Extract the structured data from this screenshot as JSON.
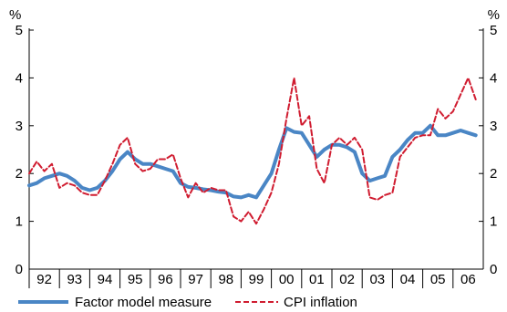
{
  "chart_data": {
    "type": "line",
    "unit_left": "%",
    "unit_right": "%",
    "ylim": [
      0,
      5
    ],
    "yticks": [
      0,
      1,
      2,
      3,
      4,
      5
    ],
    "x_categories": [
      "92",
      "93",
      "94",
      "95",
      "96",
      "97",
      "98",
      "99",
      "00",
      "01",
      "02",
      "03",
      "04",
      "05",
      "06"
    ],
    "x_start": 1992.0,
    "x_end": 2006.75,
    "grid": false,
    "legend_position": "bottom",
    "colors": {
      "factor": "#4a86c5",
      "cpi": "#d01c30",
      "axis": "#000000"
    },
    "series": [
      {
        "name": "Factor model measure",
        "style": "solid",
        "x": [
          1992.0,
          1992.25,
          1992.5,
          1992.75,
          1993.0,
          1993.25,
          1993.5,
          1993.75,
          1994.0,
          1994.25,
          1994.5,
          1994.75,
          1995.0,
          1995.25,
          1995.5,
          1995.75,
          1996.0,
          1996.25,
          1996.5,
          1996.75,
          1997.0,
          1997.25,
          1997.5,
          1997.75,
          1998.0,
          1998.25,
          1998.5,
          1998.75,
          1999.0,
          1999.25,
          1999.5,
          1999.75,
          2000.0,
          2000.25,
          2000.5,
          2000.75,
          2001.0,
          2001.25,
          2001.5,
          2001.75,
          2002.0,
          2002.25,
          2002.5,
          2002.75,
          2003.0,
          2003.25,
          2003.5,
          2003.75,
          2004.0,
          2004.25,
          2004.5,
          2004.75,
          2005.0,
          2005.25,
          2005.5,
          2005.75,
          2006.0,
          2006.25,
          2006.5,
          2006.75
        ],
        "y": [
          1.75,
          1.8,
          1.9,
          1.95,
          2.0,
          1.95,
          1.85,
          1.7,
          1.65,
          1.7,
          1.85,
          2.05,
          2.3,
          2.45,
          2.3,
          2.2,
          2.2,
          2.15,
          2.1,
          2.05,
          1.8,
          1.72,
          1.7,
          1.67,
          1.65,
          1.62,
          1.6,
          1.52,
          1.5,
          1.55,
          1.5,
          1.75,
          2.0,
          2.5,
          2.95,
          2.87,
          2.85,
          2.6,
          2.35,
          2.5,
          2.6,
          2.6,
          2.55,
          2.45,
          2.0,
          1.85,
          1.9,
          1.95,
          2.35,
          2.5,
          2.7,
          2.85,
          2.85,
          3.0,
          2.8,
          2.8,
          2.85,
          2.9,
          2.85,
          2.8
        ]
      },
      {
        "name": "CPI inflation",
        "style": "dashed",
        "x": [
          1992.0,
          1992.25,
          1992.5,
          1992.75,
          1993.0,
          1993.25,
          1993.5,
          1993.75,
          1994.0,
          1994.25,
          1994.5,
          1994.75,
          1995.0,
          1995.25,
          1995.5,
          1995.75,
          1996.0,
          1996.25,
          1996.5,
          1996.75,
          1997.0,
          1997.25,
          1997.5,
          1997.75,
          1998.0,
          1998.25,
          1998.5,
          1998.75,
          1999.0,
          1999.25,
          1999.5,
          1999.75,
          2000.0,
          2000.25,
          2000.5,
          2000.75,
          2001.0,
          2001.25,
          2001.5,
          2001.75,
          2002.0,
          2002.25,
          2002.5,
          2002.75,
          2003.0,
          2003.25,
          2003.5,
          2003.75,
          2004.0,
          2004.25,
          2004.5,
          2004.75,
          2005.0,
          2005.25,
          2005.5,
          2005.75,
          2006.0,
          2006.25,
          2006.5,
          2006.75
        ],
        "y": [
          2.0,
          2.25,
          2.05,
          2.2,
          1.7,
          1.8,
          1.75,
          1.6,
          1.55,
          1.55,
          1.85,
          2.2,
          2.6,
          2.75,
          2.2,
          2.05,
          2.1,
          2.3,
          2.3,
          2.4,
          1.9,
          1.5,
          1.8,
          1.6,
          1.7,
          1.65,
          1.65,
          1.1,
          1.0,
          1.2,
          0.95,
          1.25,
          1.6,
          2.2,
          3.15,
          4.0,
          3.0,
          3.2,
          2.1,
          1.8,
          2.6,
          2.75,
          2.6,
          2.75,
          2.5,
          1.5,
          1.45,
          1.55,
          1.6,
          2.35,
          2.55,
          2.75,
          2.8,
          2.8,
          3.35,
          3.15,
          3.3,
          3.65,
          4.0,
          3.55
        ]
      }
    ]
  }
}
